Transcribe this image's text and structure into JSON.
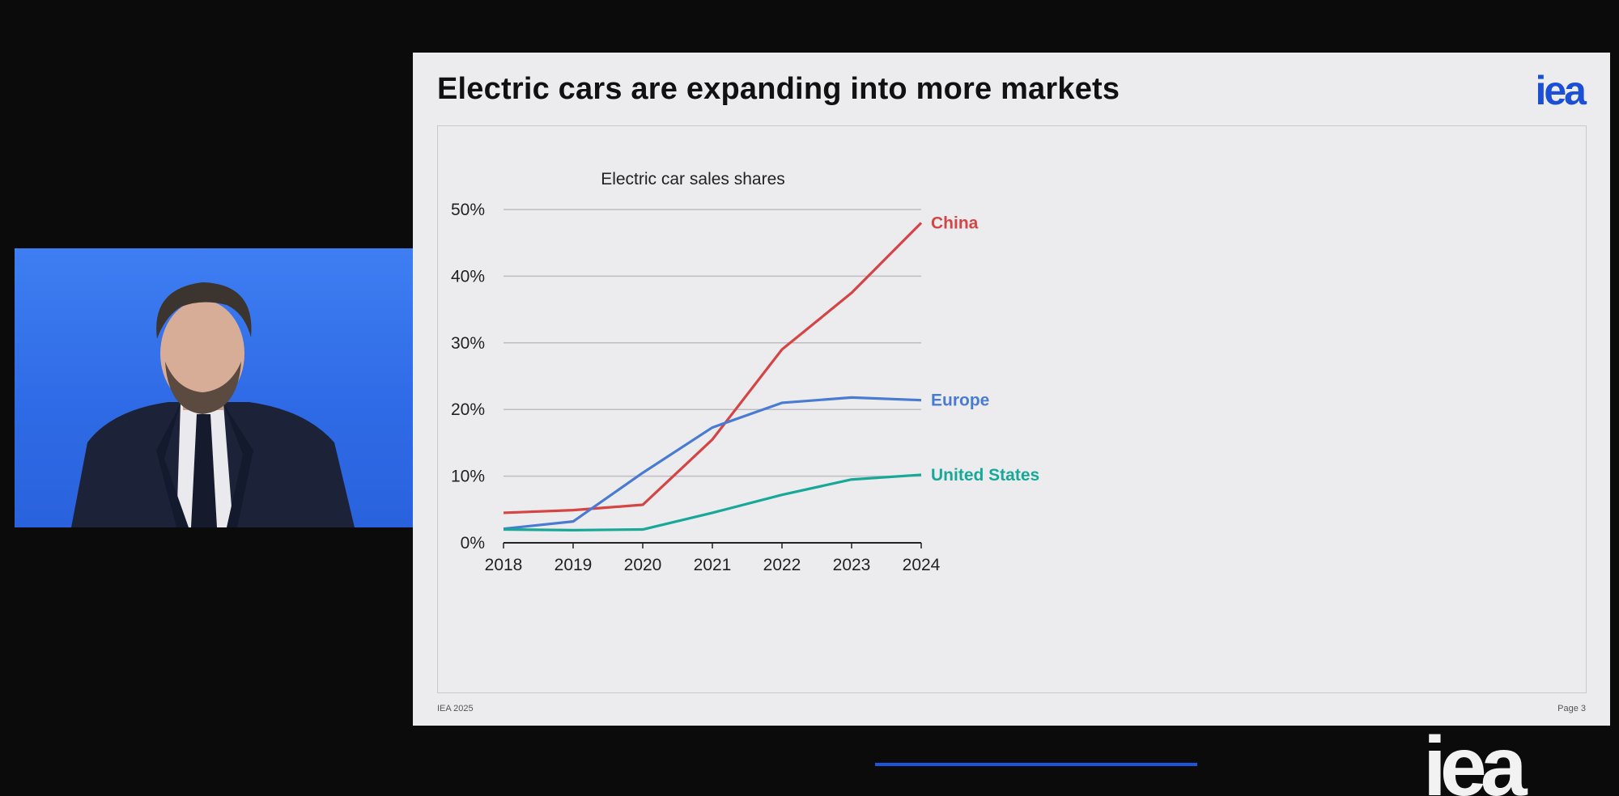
{
  "slide": {
    "title": "Electric cars are expanding into more markets",
    "logo": "iea",
    "footer_left": "IEA 2025",
    "footer_right": "Page 3",
    "progress_fraction": 0.2
  },
  "corner_logo": "iea",
  "webcam": {
    "background_color": "#3a78ee"
  },
  "chart_data": {
    "type": "line",
    "title": "Electric car sales shares",
    "x": [
      "2018",
      "2019",
      "2020",
      "2021",
      "2022",
      "2023",
      "2024"
    ],
    "yticks": [
      "0%",
      "10%",
      "20%",
      "30%",
      "40%",
      "50%"
    ],
    "ylim": [
      0,
      50
    ],
    "grid": true,
    "series": [
      {
        "name": "China",
        "color": "#d64545",
        "values": [
          4.5,
          4.9,
          5.7,
          15.5,
          29,
          37.5,
          48
        ]
      },
      {
        "name": "Europe",
        "color": "#4a7bd2",
        "values": [
          2.1,
          3.2,
          10.5,
          17.3,
          21,
          21.8,
          21.4
        ]
      },
      {
        "name": "United States",
        "color": "#17a898",
        "values": [
          2,
          1.9,
          2,
          4.5,
          7.2,
          9.5,
          10.2
        ]
      }
    ]
  }
}
